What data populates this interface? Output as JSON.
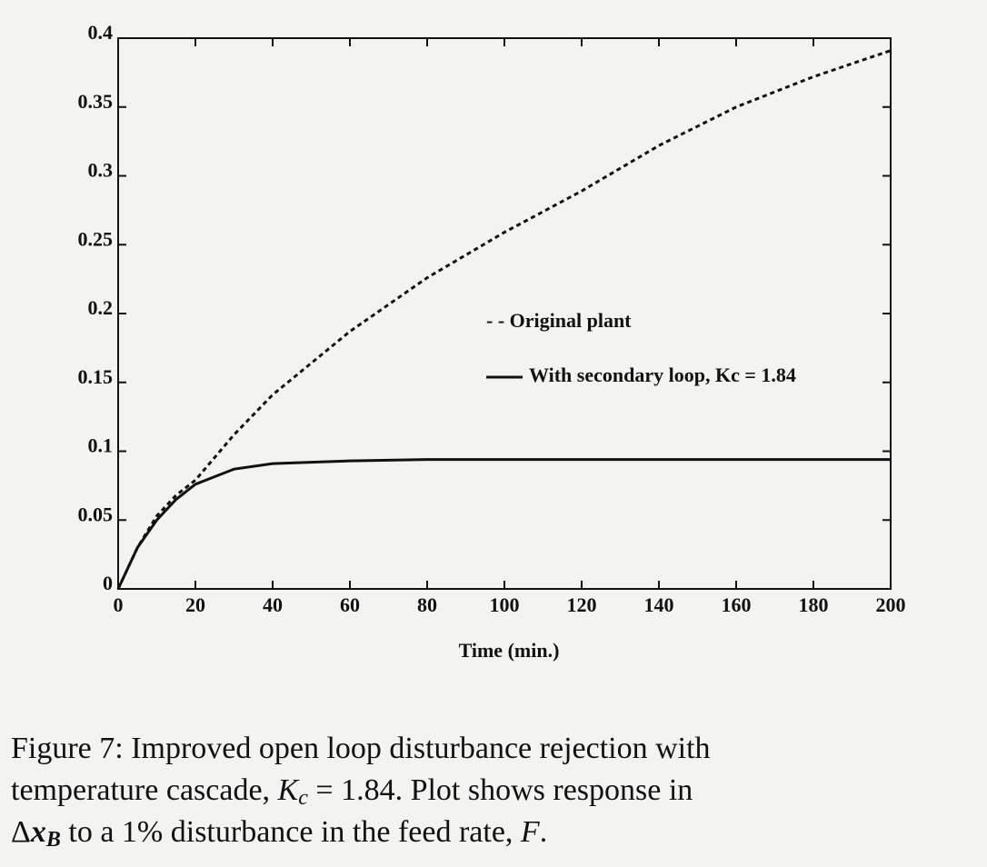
{
  "chart_data": {
    "type": "line",
    "x": [
      0,
      5,
      10,
      15,
      20,
      30,
      40,
      60,
      80,
      100,
      120,
      140,
      160,
      180,
      200
    ],
    "series": [
      {
        "name": "- - Original plant",
        "color": "#111111",
        "dash": true,
        "values": [
          0,
          0.03,
          0.053,
          0.068,
          0.079,
          0.112,
          0.141,
          0.187,
          0.226,
          0.259,
          0.289,
          0.322,
          0.35,
          0.372,
          0.391
        ]
      },
      {
        "name": "With secondary loop, Kc = 1.84",
        "color": "#111111",
        "dash": false,
        "values": [
          0,
          0.03,
          0.05,
          0.065,
          0.076,
          0.087,
          0.091,
          0.093,
          0.094,
          0.094,
          0.094,
          0.094,
          0.094,
          0.094,
          0.094
        ]
      }
    ],
    "xlabel": "Time (min.)",
    "xlim": [
      0,
      200
    ],
    "xticks": [
      0,
      20,
      40,
      60,
      80,
      100,
      120,
      140,
      160,
      180,
      200
    ],
    "ylim": [
      0,
      0.4
    ],
    "yticks": [
      0,
      0.05,
      0.1,
      0.15,
      0.2,
      0.25,
      0.3,
      0.35,
      0.4
    ],
    "grid": false
  },
  "caption": [
    "Figure 7: Improved open loop disturbance rejection with",
    "temperature cascade, ",
    "K",
    "c",
    " = 1.84.  Plot shows response in",
    "Δ",
    "x",
    "B",
    " to a 1% disturbance in the feed rate, ",
    "F",
    "."
  ]
}
